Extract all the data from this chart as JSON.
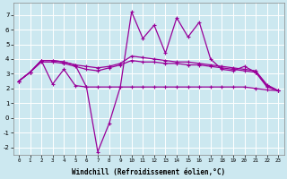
{
  "title": "",
  "xlabel": "Windchill (Refroidissement éolien,°C)",
  "bg_color": "#cce8f0",
  "line_color": "#990099",
  "grid_color": "#ffffff",
  "x": [
    0,
    1,
    2,
    3,
    4,
    5,
    6,
    7,
    8,
    9,
    10,
    11,
    12,
    13,
    14,
    15,
    16,
    17,
    18,
    19,
    20,
    21,
    22,
    23
  ],
  "series_volatile": [
    2.5,
    3.1,
    3.9,
    2.3,
    3.3,
    2.2,
    2.1,
    -2.3,
    -0.4,
    2.1,
    7.2,
    5.4,
    6.3,
    4.4,
    6.8,
    5.5,
    6.5,
    4.0,
    3.3,
    3.2,
    3.5,
    3.1,
    2.1,
    1.85
  ],
  "series_flat": [
    2.5,
    3.1,
    3.9,
    3.9,
    3.8,
    3.6,
    2.1,
    2.1,
    2.1,
    2.1,
    2.1,
    2.1,
    2.1,
    2.1,
    2.1,
    2.1,
    2.1,
    2.1,
    2.1,
    2.1,
    2.1,
    2.0,
    1.9,
    1.85
  ],
  "series_upper": [
    2.5,
    3.1,
    3.9,
    3.9,
    3.8,
    3.6,
    3.5,
    3.4,
    3.5,
    3.7,
    4.2,
    4.1,
    4.0,
    3.9,
    3.8,
    3.8,
    3.7,
    3.6,
    3.5,
    3.4,
    3.3,
    3.2,
    2.25,
    1.85
  ],
  "series_mid": [
    2.5,
    3.1,
    3.8,
    3.8,
    3.7,
    3.5,
    3.3,
    3.2,
    3.4,
    3.6,
    3.9,
    3.8,
    3.8,
    3.7,
    3.7,
    3.6,
    3.6,
    3.5,
    3.4,
    3.3,
    3.2,
    3.1,
    2.2,
    1.85
  ],
  "ylim": [
    -2.5,
    7.8
  ],
  "yticks": [
    -2,
    -1,
    0,
    1,
    2,
    3,
    4,
    5,
    6,
    7
  ],
  "xticks": [
    0,
    1,
    2,
    3,
    4,
    5,
    6,
    7,
    8,
    9,
    10,
    11,
    12,
    13,
    14,
    15,
    16,
    17,
    18,
    19,
    20,
    21,
    22,
    23
  ]
}
